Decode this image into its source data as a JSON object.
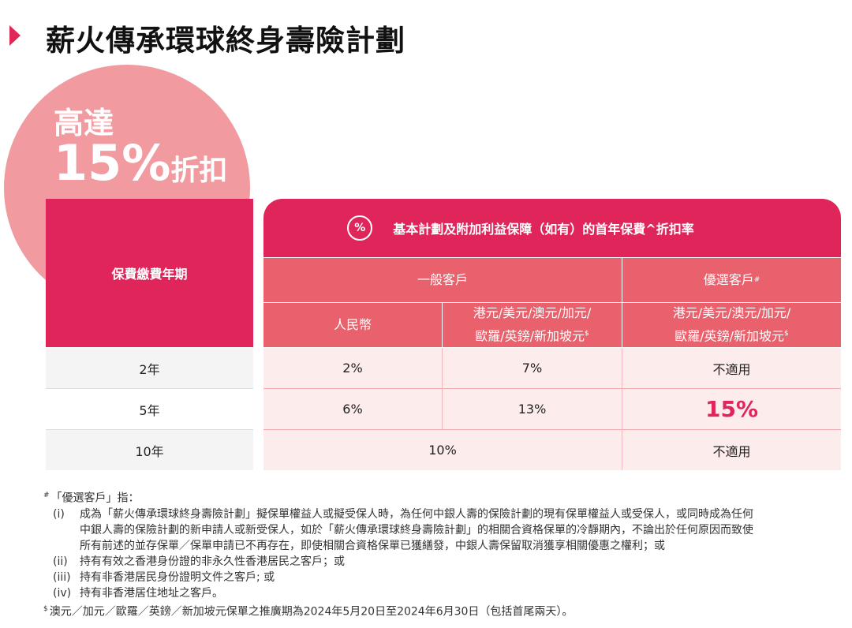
{
  "title": "薪火傳承環球終身壽險計劃",
  "promo": {
    "line1": "高達",
    "percent": "15%",
    "discount": "折扣"
  },
  "table": {
    "header_left": "保費繳費年期",
    "header_top": "基本計劃及附加利益保障（如有）的首年保費^折扣率",
    "header_icon": "%",
    "general": "一般客戶",
    "preferred": "優選客戶",
    "preferred_mark": "#",
    "rmb": "人民幣",
    "currencies_line1": "港元/美元/澳元/加元/",
    "currencies_line2": "歐羅/英鎊/新加坡元",
    "currencies_mark": "$",
    "rows": [
      {
        "term": "2年",
        "rmb": "2%",
        "fx": "7%",
        "preferred": "不適用"
      },
      {
        "term": "5年",
        "rmb": "6%",
        "fx": "13%",
        "preferred": "15%"
      },
      {
        "term": "10年",
        "general_merged": "10%",
        "preferred": "不適用"
      }
    ]
  },
  "notes": {
    "heading_mark": "#",
    "heading": "「優選客戶」指：",
    "items": [
      {
        "num": "(i)",
        "lines": [
          "成為「薪火傳承環球終身壽險計劃」擬保單權益人或擬受保人時，為任何中銀人壽的保險計劃的現有保單權益人或受保人，或同時成為任何",
          "中銀人壽的保險計劃的新申請人或新受保人，如於「薪火傳承環球終身壽險計劃」的相關合資格保單的冷靜期內，不論出於任何原因而致使",
          "所有前述的並存保單／保單申請已不再存在，即使相關合資格保單已獲繕發，中銀人壽保留取消獲享相關優惠之權利；或"
        ]
      },
      {
        "num": "(ii)",
        "lines": [
          "持有有效之香港身份證的非永久性香港居民之客戶；或"
        ]
      },
      {
        "num": "(iii)",
        "lines": [
          "持有非香港居民身份證明文件之客戶; 或"
        ]
      },
      {
        "num": "(iv)",
        "lines": [
          "持有非香港居住地址之客戶。"
        ]
      }
    ],
    "footnote_mark": "$",
    "footnote": "澳元／加元／歐羅／英鎊／新加坡元保單之推廣期為2024年5月20日至2024年6月30日（包括首尾兩天）。"
  },
  "colors": {
    "accent": "#e0255a",
    "sub_header": "#e9616c",
    "circle": "#f19aa0",
    "row_pink": "#fdecec",
    "row_grey": "#f4f4f4"
  }
}
